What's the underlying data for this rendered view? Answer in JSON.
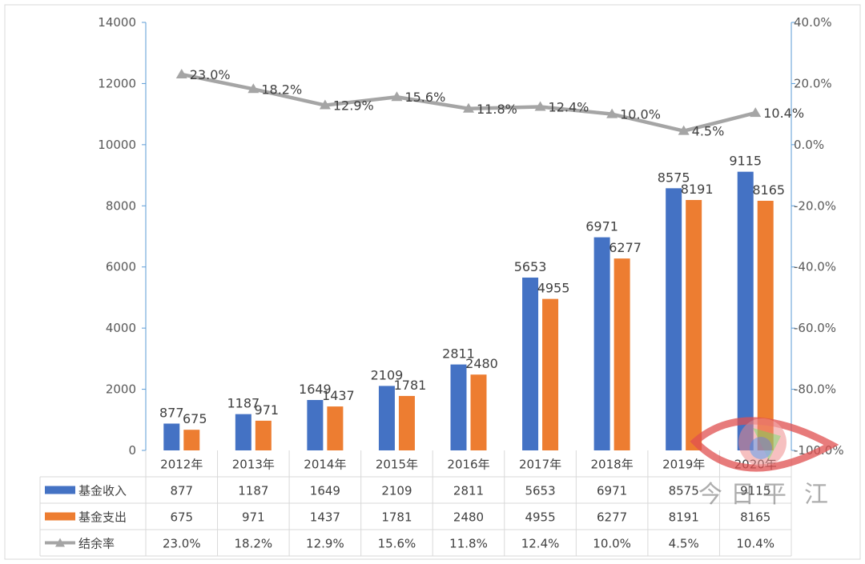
{
  "chart_data": {
    "type": "bar",
    "categories": [
      "2012年",
      "2013年",
      "2014年",
      "2015年",
      "2016年",
      "2017年",
      "2018年",
      "2019年",
      "2020年"
    ],
    "series": [
      {
        "name": "基金收入",
        "type": "bar",
        "axis": "left",
        "color": "#4472C4",
        "values": [
          877,
          1187,
          1649,
          2109,
          2811,
          5653,
          6971,
          8575,
          9115
        ],
        "labels": [
          "877",
          "1187",
          "1649",
          "2109",
          "2811",
          "5653",
          "6971",
          "8575",
          "9115"
        ]
      },
      {
        "name": "基金支出",
        "type": "bar",
        "axis": "left",
        "color": "#ED7D31",
        "values": [
          675,
          971,
          1437,
          1781,
          2480,
          4955,
          6277,
          8191,
          8165
        ],
        "labels": [
          "675",
          "971",
          "1437",
          "1781",
          "2480",
          "4955",
          "6277",
          "8191",
          "8165"
        ]
      },
      {
        "name": "结余率",
        "type": "line",
        "axis": "right",
        "color": "#A5A5A5",
        "values": [
          23.0,
          18.2,
          12.9,
          15.6,
          11.8,
          12.4,
          10.0,
          4.5,
          10.4
        ],
        "labels": [
          "23.0%",
          "18.2%",
          "12.9%",
          "15.6%",
          "11.8%",
          "12.4%",
          "10.0%",
          "4.5%",
          "10.4%"
        ]
      }
    ],
    "y_left": {
      "range": [
        0,
        14000
      ],
      "ticks": [
        0,
        2000,
        4000,
        6000,
        8000,
        10000,
        12000,
        14000
      ],
      "tick_labels": [
        "0",
        "2000",
        "4000",
        "6000",
        "8000",
        "10000",
        "12000",
        "14000"
      ]
    },
    "y_right": {
      "range": [
        -100,
        40
      ],
      "ticks": [
        -100,
        -80,
        -60,
        -40,
        -20,
        0,
        20,
        40
      ],
      "tick_labels": [
        "-100.0%",
        "-80.0%",
        "-60.0%",
        "-40.0%",
        "-20.0%",
        "0.0%",
        "20.0%",
        "40.0%"
      ]
    },
    "grid": false,
    "legend": "data-table-bottom",
    "data_table": true
  },
  "watermark": {
    "text": "今日平江",
    "chars": [
      "今",
      "日",
      "平",
      "江"
    ]
  }
}
